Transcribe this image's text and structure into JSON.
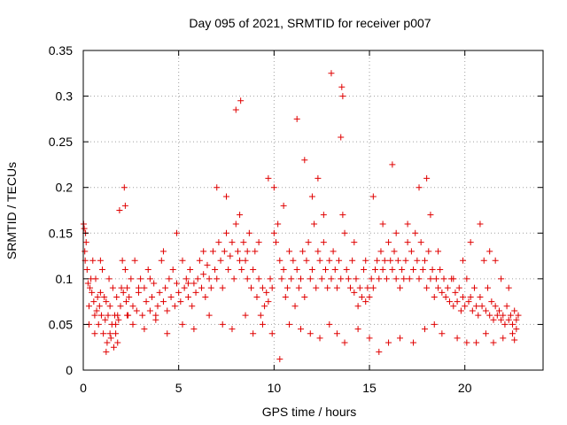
{
  "chart_data": {
    "type": "scatter",
    "title": "Day 095 of 2021, SRMTID for receiver p007",
    "xlabel": "GPS time / hours",
    "ylabel": "SRMTID / TECUs",
    "xlim": [
      0,
      24.1
    ],
    "ylim": [
      0,
      0.35
    ],
    "xticks": [
      0,
      5,
      10,
      15,
      20
    ],
    "xtick_labels": [
      "0",
      "5",
      "10",
      "15",
      "20"
    ],
    "yticks": [
      0,
      0.05,
      0.1,
      0.15,
      0.2,
      0.25,
      0.3,
      0.35
    ],
    "ytick_labels": [
      "0",
      "0.05",
      "0.1",
      "0.15",
      "0.2",
      "0.25",
      "0.3",
      "0.35"
    ],
    "grid": true,
    "marker": "plus",
    "color": "#e00000",
    "series": [
      {
        "name": "SRMTID p007",
        "x": [
          0.02,
          0.05,
          0.08,
          0.1,
          0.12,
          0.15,
          0.2,
          0.25,
          0.3,
          0.35,
          0.4,
          0.45,
          0.5,
          0.55,
          0.6,
          0.65,
          0.7,
          0.75,
          0.8,
          0.85,
          0.9,
          0.95,
          1.0,
          1.05,
          1.1,
          1.15,
          1.2,
          1.25,
          1.3,
          1.35,
          1.4,
          1.45,
          1.5,
          1.55,
          1.6,
          1.65,
          1.7,
          1.75,
          1.8,
          1.85,
          1.9,
          1.95,
          2.0,
          2.05,
          2.1,
          2.15,
          2.2,
          2.25,
          2.3,
          2.35,
          2.4,
          2.5,
          2.6,
          2.7,
          2.8,
          2.9,
          3.0,
          3.1,
          3.2,
          3.3,
          3.4,
          3.5,
          3.6,
          3.7,
          3.8,
          3.9,
          4.0,
          4.1,
          4.2,
          4.3,
          4.4,
          4.5,
          4.6,
          4.7,
          4.8,
          4.9,
          5.0,
          5.1,
          5.2,
          5.3,
          5.4,
          5.5,
          5.6,
          5.7,
          5.8,
          5.9,
          6.0,
          6.1,
          6.2,
          6.3,
          6.4,
          6.5,
          6.6,
          6.7,
          6.8,
          6.9,
          7.0,
          7.1,
          7.2,
          7.3,
          7.4,
          7.5,
          7.6,
          7.7,
          7.8,
          7.9,
          8.0,
          8.1,
          8.2,
          8.25,
          8.3,
          8.4,
          8.5,
          8.6,
          8.7,
          8.8,
          8.9,
          9.0,
          9.1,
          9.2,
          9.3,
          9.4,
          9.5,
          9.6,
          9.7,
          9.8,
          9.9,
          10.0,
          10.1,
          10.2,
          10.3,
          10.4,
          10.5,
          10.6,
          10.7,
          10.8,
          10.9,
          11.0,
          11.1,
          11.2,
          11.3,
          11.4,
          11.5,
          11.6,
          11.7,
          11.8,
          11.9,
          12.0,
          12.1,
          12.2,
          12.3,
          12.4,
          12.5,
          12.6,
          12.7,
          12.8,
          12.9,
          13.0,
          13.1,
          13.2,
          13.3,
          13.4,
          13.5,
          13.55,
          13.6,
          13.7,
          13.8,
          13.9,
          14.0,
          14.1,
          14.2,
          14.3,
          14.4,
          14.5,
          14.6,
          14.7,
          14.8,
          14.9,
          15.0,
          15.1,
          15.2,
          15.3,
          15.4,
          15.5,
          15.6,
          15.7,
          15.8,
          15.9,
          16.0,
          16.1,
          16.2,
          16.3,
          16.4,
          16.5,
          16.6,
          16.7,
          16.8,
          16.9,
          17.0,
          17.1,
          17.2,
          17.3,
          17.4,
          17.5,
          17.6,
          17.7,
          17.8,
          17.9,
          18.0,
          18.1,
          18.2,
          18.3,
          18.4,
          18.5,
          18.6,
          18.7,
          18.8,
          18.9,
          19.0,
          19.1,
          19.2,
          19.3,
          19.4,
          19.5,
          19.6,
          19.7,
          19.8,
          19.9,
          20.0,
          20.1,
          20.2,
          20.3,
          20.4,
          20.5,
          20.6,
          20.7,
          20.8,
          20.9,
          21.0,
          21.1,
          21.2,
          21.3,
          21.4,
          21.5,
          21.6,
          21.7,
          21.8,
          21.9,
          22.0,
          22.1,
          22.2,
          22.3,
          22.4,
          22.5,
          22.6,
          22.7,
          22.8,
          0.3,
          0.9,
          1.4,
          1.8,
          2.2,
          2.9,
          3.5,
          4.2,
          4.9,
          5.5,
          6.3,
          7.0,
          7.5,
          8.0,
          8.2,
          8.6,
          9.2,
          9.7,
          10.0,
          10.5,
          11.2,
          11.6,
          12.0,
          12.3,
          12.6,
          13.0,
          13.5,
          13.6,
          14.2,
          14.8,
          15.2,
          15.7,
          16.2,
          16.4,
          17.0,
          17.6,
          18.0,
          18.2,
          18.6,
          19.4,
          19.9,
          20.3,
          20.8,
          21.3,
          21.6,
          21.9,
          22.3,
          22.6,
          0.6,
          1.2,
          1.7,
          2.3,
          2.6,
          3.2,
          3.8,
          4.4,
          5.2,
          5.8,
          6.6,
          7.3,
          7.8,
          8.5,
          8.9,
          9.4,
          9.9,
          10.3,
          10.8,
          11.4,
          11.9,
          12.4,
          12.9,
          13.3,
          13.7,
          14.4,
          15.0,
          15.5,
          16.0,
          16.6,
          17.3,
          17.9,
          18.4,
          18.8,
          19.6,
          20.1,
          20.6,
          21.1,
          21.5,
          22.0,
          22.5,
          22.7
        ],
        "y": [
          0.16,
          0.155,
          0.13,
          0.12,
          0.15,
          0.14,
          0.11,
          0.095,
          0.07,
          0.09,
          0.1,
          0.085,
          0.12,
          0.075,
          0.06,
          0.1,
          0.065,
          0.08,
          0.05,
          0.07,
          0.085,
          0.06,
          0.11,
          0.04,
          0.08,
          0.055,
          0.075,
          0.03,
          0.06,
          0.1,
          0.07,
          0.035,
          0.05,
          0.09,
          0.025,
          0.06,
          0.04,
          0.08,
          0.03,
          0.055,
          0.175,
          0.07,
          0.09,
          0.12,
          0.085,
          0.2,
          0.11,
          0.075,
          0.09,
          0.06,
          0.08,
          0.1,
          0.07,
          0.12,
          0.065,
          0.085,
          0.1,
          0.06,
          0.09,
          0.075,
          0.11,
          0.065,
          0.08,
          0.095,
          0.06,
          0.07,
          0.085,
          0.12,
          0.075,
          0.09,
          0.065,
          0.1,
          0.08,
          0.11,
          0.07,
          0.095,
          0.085,
          0.075,
          0.12,
          0.09,
          0.1,
          0.08,
          0.11,
          0.07,
          0.095,
          0.085,
          0.1,
          0.12,
          0.09,
          0.105,
          0.08,
          0.115,
          0.1,
          0.09,
          0.13,
          0.11,
          0.1,
          0.14,
          0.12,
          0.09,
          0.13,
          0.15,
          0.11,
          0.125,
          0.14,
          0.1,
          0.16,
          0.13,
          0.12,
          0.295,
          0.11,
          0.14,
          0.12,
          0.1,
          0.15,
          0.09,
          0.11,
          0.13,
          0.08,
          0.1,
          0.06,
          0.09,
          0.07,
          0.085,
          0.075,
          0.1,
          0.09,
          0.2,
          0.14,
          0.16,
          0.12,
          0.1,
          0.11,
          0.08,
          0.09,
          0.13,
          0.1,
          0.12,
          0.07,
          0.11,
          0.09,
          0.1,
          0.13,
          0.08,
          0.12,
          0.14,
          0.1,
          0.11,
          0.16,
          0.09,
          0.13,
          0.12,
          0.1,
          0.14,
          0.11,
          0.09,
          0.12,
          0.1,
          0.13,
          0.11,
          0.09,
          0.12,
          0.1,
          0.31,
          0.3,
          0.15,
          0.11,
          0.1,
          0.09,
          0.12,
          0.085,
          0.1,
          0.07,
          0.09,
          0.08,
          0.11,
          0.075,
          0.09,
          0.08,
          0.1,
          0.09,
          0.11,
          0.12,
          0.1,
          0.13,
          0.11,
          0.12,
          0.1,
          0.14,
          0.12,
          0.11,
          0.13,
          0.1,
          0.12,
          0.09,
          0.11,
          0.1,
          0.12,
          0.14,
          0.1,
          0.13,
          0.11,
          0.15,
          0.12,
          0.1,
          0.14,
          0.11,
          0.12,
          0.09,
          0.13,
          0.1,
          0.11,
          0.08,
          0.1,
          0.09,
          0.11,
          0.085,
          0.1,
          0.08,
          0.09,
          0.075,
          0.1,
          0.07,
          0.085,
          0.075,
          0.09,
          0.065,
          0.08,
          0.07,
          0.1,
          0.075,
          0.08,
          0.065,
          0.09,
          0.07,
          0.06,
          0.08,
          0.07,
          0.12,
          0.065,
          0.09,
          0.06,
          0.075,
          0.055,
          0.07,
          0.06,
          0.065,
          0.055,
          0.06,
          0.05,
          0.07,
          0.055,
          0.06,
          0.05,
          0.065,
          0.055,
          0.06,
          0.05,
          0.12,
          0.04,
          0.06,
          0.18,
          0.09,
          0.1,
          0.13,
          0.15,
          0.095,
          0.13,
          0.2,
          0.19,
          0.285,
          0.17,
          0.13,
          0.14,
          0.21,
          0.15,
          0.18,
          0.275,
          0.23,
          0.19,
          0.21,
          0.17,
          0.325,
          0.255,
          0.17,
          0.14,
          0.12,
          0.19,
          0.16,
          0.225,
          0.15,
          0.16,
          0.2,
          0.21,
          0.17,
          0.13,
          0.1,
          0.12,
          0.14,
          0.16,
          0.13,
          0.12,
          0.1,
          0.09,
          0.033,
          0.04,
          0.02,
          0.05,
          0.06,
          0.05,
          0.045,
          0.055,
          0.04,
          0.05,
          0.045,
          0.06,
          0.05,
          0.045,
          0.06,
          0.04,
          0.05,
          0.04,
          0.012,
          0.05,
          0.045,
          0.04,
          0.035,
          0.05,
          0.04,
          0.03,
          0.045,
          0.035,
          0.02,
          0.03,
          0.035,
          0.03,
          0.045,
          0.05,
          0.04,
          0.035,
          0.03,
          0.03,
          0.04,
          0.03,
          0.035,
          0.04,
          0.045
        ]
      }
    ]
  }
}
